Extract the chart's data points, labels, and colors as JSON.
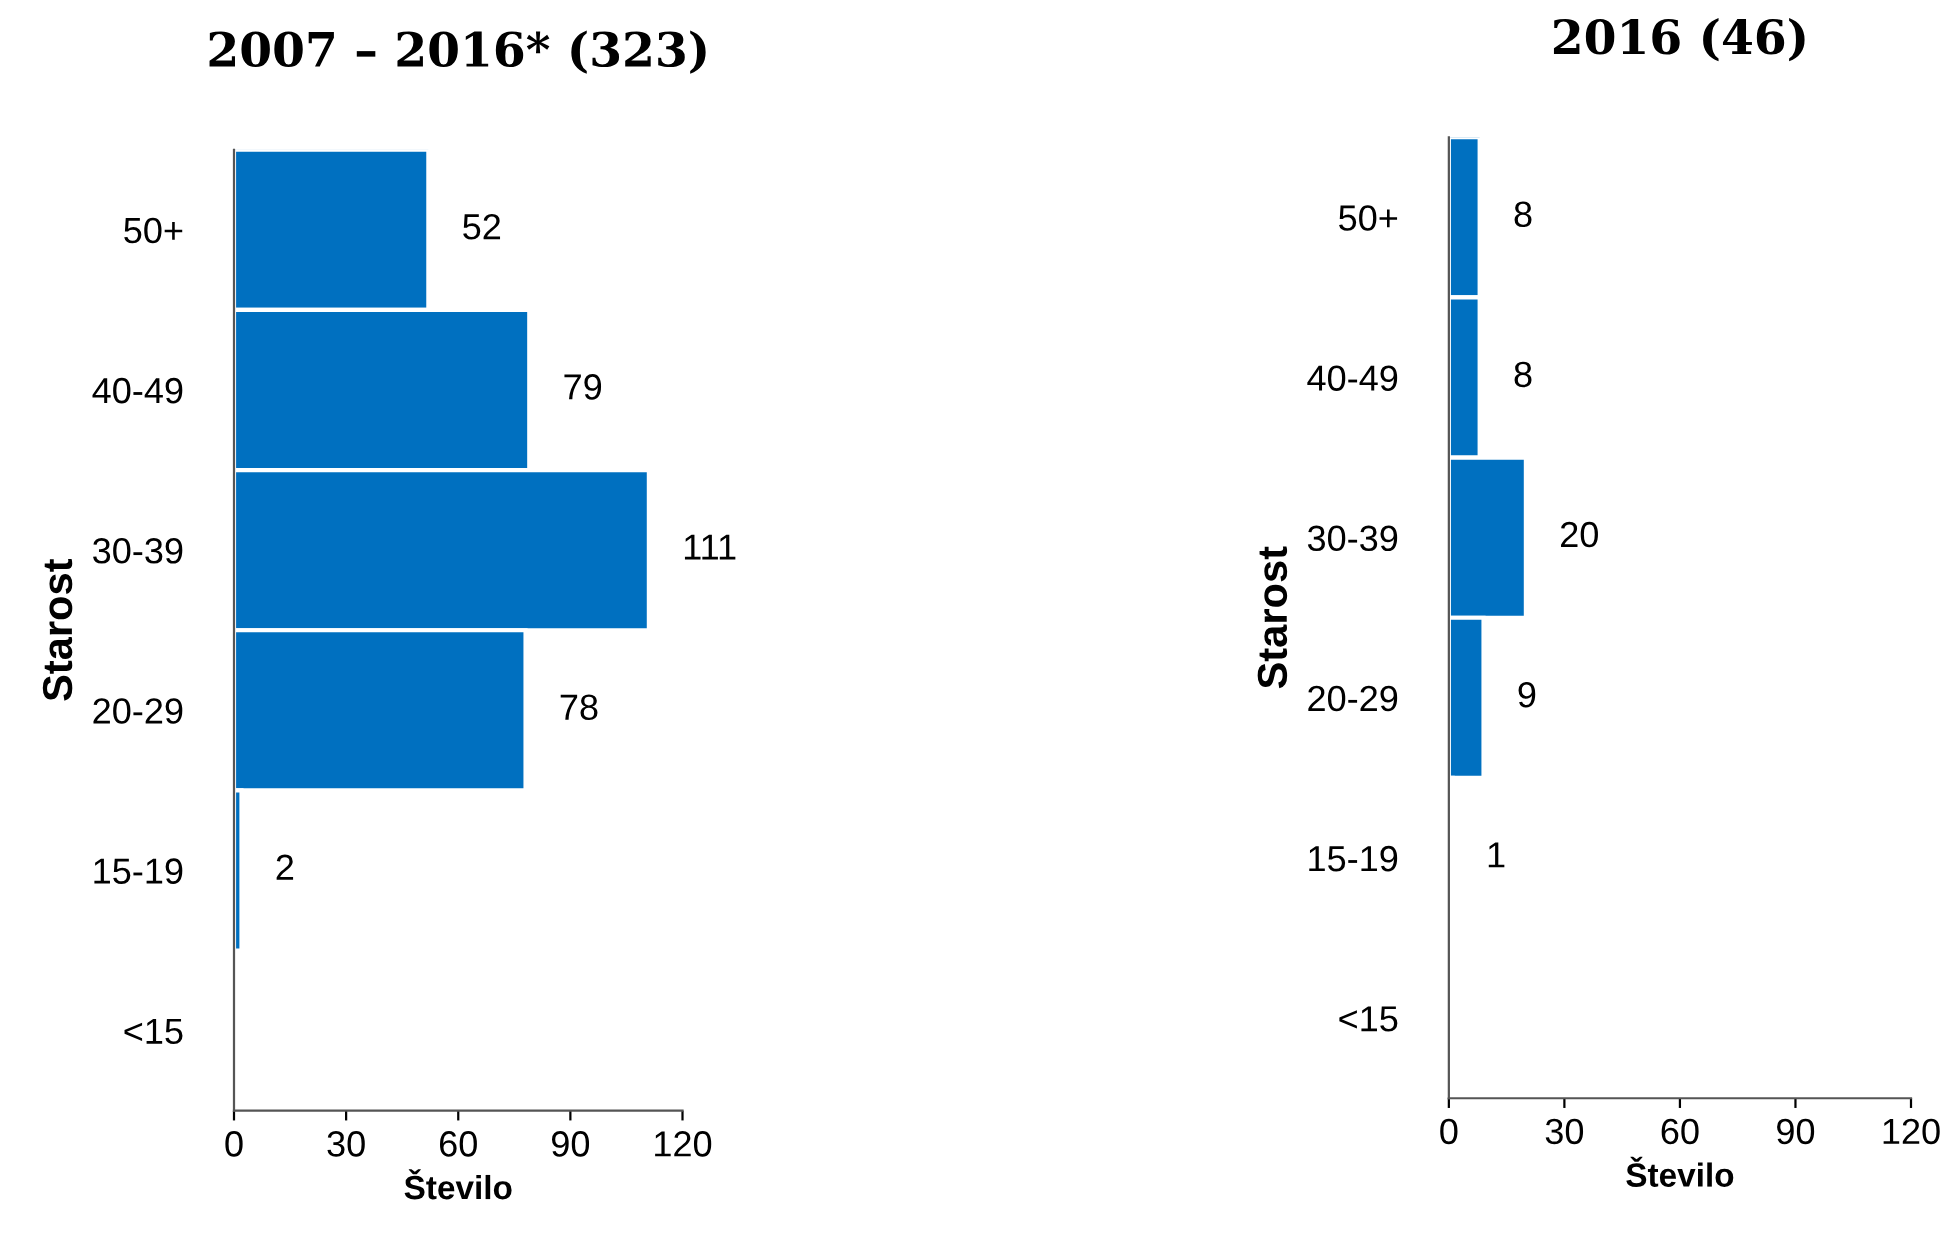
{
  "chart_data": [
    {
      "type": "bar",
      "orientation": "horizontal",
      "title": "2007 – 2016* (323)",
      "xlabel": "Število",
      "ylabel": "Starost",
      "categories": [
        "50+",
        "40-49",
        "30-39",
        "20-29",
        "15-19",
        "<15"
      ],
      "series": [
        {
          "color": "#0070c0",
          "values": [
            52,
            79,
            111,
            78,
            2,
            0
          ],
          "value_labels": [
            "52",
            "79",
            "111",
            "78",
            "2",
            null
          ]
        }
      ],
      "xlim": [
        0,
        120
      ],
      "xticks": [
        0,
        30,
        60,
        90,
        120
      ],
      "grid": false,
      "legend": false
    },
    {
      "type": "bar",
      "orientation": "horizontal",
      "title": "2016 (46)",
      "xlabel": "Število",
      "ylabel": "Starost",
      "categories": [
        "50+",
        "40-49",
        "30-39",
        "20-29",
        "15-19",
        "<15"
      ],
      "series": [
        {
          "color": "#0070c0",
          "values": [
            8,
            8,
            20,
            9,
            1,
            0
          ],
          "value_labels": [
            "8",
            "8",
            "20",
            "9",
            "1",
            null
          ]
        }
      ],
      "xlim": [
        0,
        120
      ],
      "xticks": [
        0,
        30,
        60,
        90,
        120
      ],
      "grid": false,
      "legend": false
    }
  ]
}
